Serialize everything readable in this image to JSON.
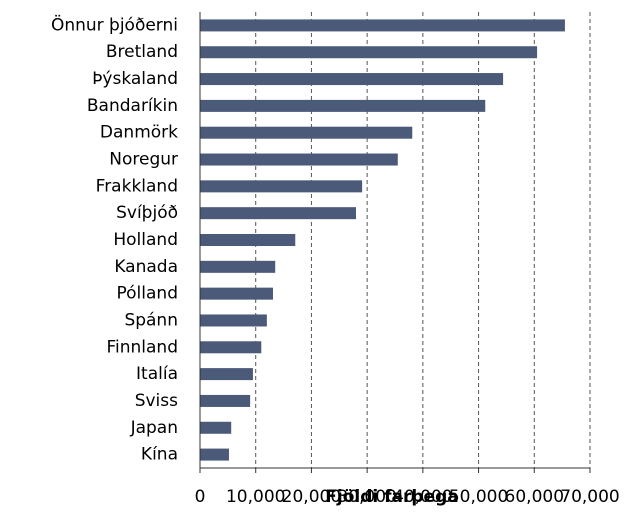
{
  "chart_data": {
    "type": "hbar",
    "x_label": "Fjöldi farþega",
    "categories": [
      "Önnur þjóðerni",
      "Bretland",
      "Þýskaland",
      "Bandaríkin",
      "Danmörk",
      "Noregur",
      "Frakkland",
      "Svíþjóð",
      "Holland",
      "Kanada",
      "Pólland",
      "Spánn",
      "Finnland",
      "Italía",
      "Sviss",
      "Japan",
      "Kína"
    ],
    "values": [
      65500,
      60500,
      54400,
      51200,
      38100,
      35500,
      29100,
      28000,
      17100,
      13500,
      13100,
      12000,
      11000,
      9500,
      9000,
      5600,
      5200
    ],
    "color": "#4a5a78",
    "xlim": [
      0,
      70000
    ],
    "xticks": [
      0,
      {
        "value": 10000,
        "label": "10,000"
      },
      {
        "value": 20000,
        "label": "20,000"
      },
      {
        "value": 30000,
        "label": "30,000"
      },
      {
        "value": 40000,
        "label": "40,000"
      },
      {
        "value": 50000,
        "label": "50,000"
      },
      {
        "value": 60000,
        "label": "60,000"
      },
      {
        "value": 70000,
        "label": "70,000"
      }
    ],
    "grid": true
  }
}
